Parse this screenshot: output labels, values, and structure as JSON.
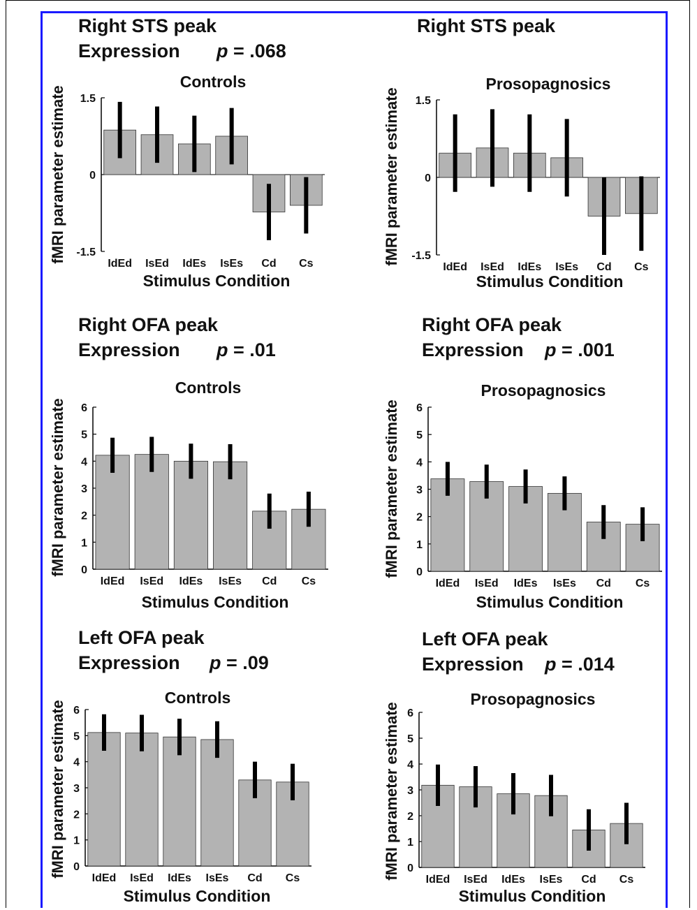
{
  "chart_data": [
    {
      "type": "bar",
      "title": "Right STS peak",
      "subtitle": "Expression",
      "p_value": ".068",
      "group": "Controls",
      "xlabel": "Stimulus Condition",
      "ylabel": "fMRI parameter estimate",
      "categories": [
        "IdEd",
        "IsEd",
        "IdEs",
        "IsEs",
        "Cd",
        "Cs"
      ],
      "values": [
        0.87,
        0.78,
        0.6,
        0.75,
        -0.73,
        -0.6
      ],
      "errors": [
        0.55,
        0.55,
        0.55,
        0.55,
        0.55,
        0.55
      ],
      "ylim": [
        -1.5,
        1.5
      ],
      "yticks": [
        "1.5",
        "0",
        "-1.5"
      ],
      "yticks_values": [
        1.5,
        0,
        -1.5
      ]
    },
    {
      "type": "bar",
      "title": "Right STS peak",
      "subtitle": "",
      "p_value": "",
      "group": "Prosopagnosics",
      "xlabel": "Stimulus Condition",
      "ylabel": "fMRI parameter estimate",
      "categories": [
        "IdEd",
        "IsEd",
        "IdEs",
        "IsEs",
        "Cd",
        "Cs"
      ],
      "values": [
        0.47,
        0.57,
        0.47,
        0.38,
        -0.75,
        -0.7
      ],
      "errors": [
        0.75,
        0.75,
        0.75,
        0.75,
        0.75,
        0.72
      ],
      "ylim": [
        -1.5,
        1.5
      ],
      "yticks": [
        "1.5",
        "0",
        "-1.5"
      ],
      "yticks_values": [
        1.5,
        0,
        -1.5
      ]
    },
    {
      "type": "bar",
      "title": "Right OFA peak",
      "subtitle": "Expression",
      "p_value": ".01",
      "group": "Controls",
      "xlabel": "Stimulus Condition",
      "ylabel": "fMRI parameter estimate",
      "categories": [
        "IdEd",
        "IsEd",
        "IdEs",
        "IsEs",
        "Cd",
        "Cs"
      ],
      "values": [
        4.22,
        4.25,
        4.0,
        3.98,
        2.15,
        2.22
      ],
      "errors": [
        0.65,
        0.65,
        0.65,
        0.65,
        0.65,
        0.65
      ],
      "ylim": [
        0,
        6
      ],
      "yticks": [
        "0",
        "1",
        "2",
        "3",
        "4",
        "5",
        "6"
      ],
      "yticks_values": [
        0,
        1,
        2,
        3,
        4,
        5,
        6
      ]
    },
    {
      "type": "bar",
      "title": "Right OFA peak",
      "subtitle": "Expression",
      "p_value": ".001",
      "group": "Prosopagnosics",
      "xlabel": "Stimulus Condition",
      "ylabel": "fMRI parameter estimate",
      "categories": [
        "IdEd",
        "IsEd",
        "IdEs",
        "IsEs",
        "Cd",
        "Cs"
      ],
      "values": [
        3.38,
        3.28,
        3.1,
        2.85,
        1.8,
        1.72
      ],
      "errors": [
        0.62,
        0.62,
        0.62,
        0.62,
        0.62,
        0.62
      ],
      "ylim": [
        0,
        6
      ],
      "yticks": [
        "0",
        "1",
        "2",
        "3",
        "4",
        "5",
        "6"
      ],
      "yticks_values": [
        0,
        1,
        2,
        3,
        4,
        5,
        6
      ]
    },
    {
      "type": "bar",
      "title": "Left OFA peak",
      "subtitle": "Expression",
      "p_value": ".09",
      "group": "Controls",
      "xlabel": "Stimulus Condition",
      "ylabel": "fMRI parameter estimate",
      "categories": [
        "IdEd",
        "IsEd",
        "IdEs",
        "IsEs",
        "Cd",
        "Cs"
      ],
      "values": [
        5.12,
        5.1,
        4.95,
        4.85,
        3.3,
        3.22
      ],
      "errors": [
        0.7,
        0.7,
        0.7,
        0.7,
        0.7,
        0.7
      ],
      "ylim": [
        0,
        6
      ],
      "yticks": [
        "0",
        "1",
        "2",
        "3",
        "4",
        "5",
        "6"
      ],
      "yticks_values": [
        0,
        1,
        2,
        3,
        4,
        5,
        6
      ]
    },
    {
      "type": "bar",
      "title": "Left OFA peak",
      "subtitle": "Expression",
      "p_value": ".014",
      "group": "Prosopagnosics",
      "xlabel": "Stimulus Condition",
      "ylabel": "fMRI parameter estimate",
      "categories": [
        "IdEd",
        "IsEd",
        "IdEs",
        "IsEs",
        "Cd",
        "Cs"
      ],
      "values": [
        3.18,
        3.12,
        2.85,
        2.78,
        1.45,
        1.7
      ],
      "errors": [
        0.8,
        0.8,
        0.8,
        0.8,
        0.8,
        0.8
      ],
      "ylim": [
        0,
        6
      ],
      "yticks": [
        "0",
        "1",
        "2",
        "3",
        "4",
        "5",
        "6"
      ],
      "yticks_values": [
        0,
        1,
        2,
        3,
        4,
        5,
        6
      ]
    }
  ],
  "colors": {
    "bar": "#b3b3b3",
    "error_bar": "#000000",
    "frame": "#1a1aff"
  }
}
